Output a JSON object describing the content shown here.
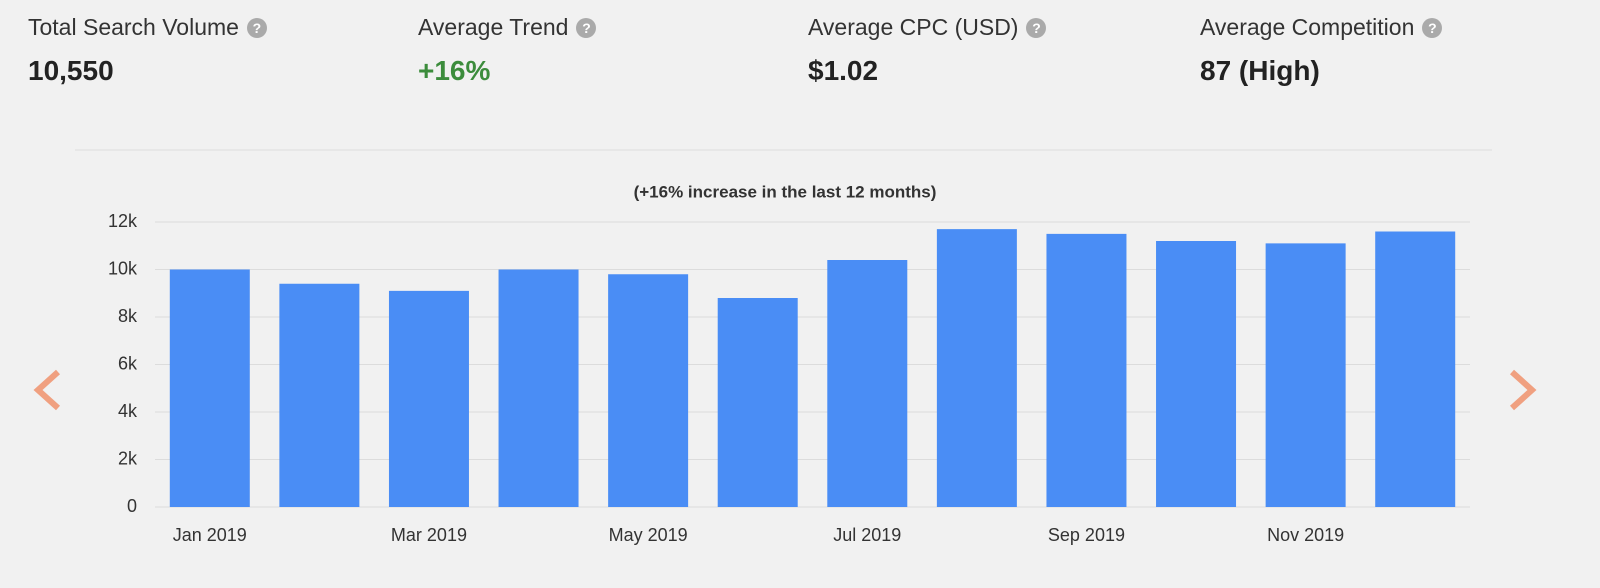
{
  "stats": [
    {
      "label": "Total Search Volume",
      "value": "10,550"
    },
    {
      "label": "Average Trend",
      "value": "+16%"
    },
    {
      "label": "Average CPC (USD)",
      "value": "$1.02"
    },
    {
      "label": "Average Competition",
      "value": "87 (High)"
    }
  ],
  "chart_data": {
    "type": "bar",
    "subtitle": "(+16% increase in the last 12 months)",
    "categories": [
      "Jan 2019",
      null,
      "Mar 2019",
      null,
      "May 2019",
      null,
      "Jul 2019",
      null,
      "Sep 2019",
      null,
      "Nov 2019",
      null
    ],
    "values": [
      10000,
      9400,
      9100,
      10000,
      9800,
      8800,
      10400,
      11700,
      11500,
      11200,
      11100,
      11600
    ],
    "color": "#4a8df5",
    "ylim": [
      0,
      12000
    ],
    "yticks": [
      0,
      {
        "value": 2000,
        "label": "2k"
      },
      {
        "value": 4000,
        "label": "4k"
      },
      {
        "value": 6000,
        "label": "6k"
      },
      {
        "value": 8000,
        "label": "8k"
      },
      {
        "value": 10000,
        "label": "10k"
      },
      {
        "value": 12000,
        "label": "12k"
      }
    ],
    "grid": true
  }
}
